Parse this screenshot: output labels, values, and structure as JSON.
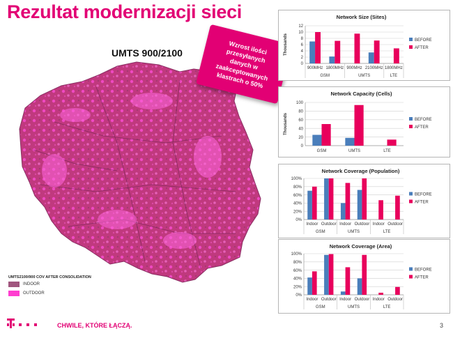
{
  "slide": {
    "title": "Rezultat modernizacji sieci",
    "map_title": "UMTS 900/2100",
    "callout_lines": [
      "Wzrost ilości",
      "przesyłanych",
      "danych w",
      "zaakceptowanych",
      "klastrach o 50%"
    ],
    "map_legend": {
      "title": "UMTS2100/900 COV AFTER CONSOLIDATION",
      "items": [
        {
          "label": "INDOOR",
          "color": "#a0567e"
        },
        {
          "label": "OUTDOOR",
          "color": "#ff3ed0"
        }
      ]
    },
    "slogan": "CHWILE, KTÓRE ŁĄCZĄ.",
    "logo_text": "T",
    "page_number": "3"
  },
  "colors": {
    "before": "#4a7ebb",
    "after": "#e8005c",
    "brand": "#e20074"
  },
  "chart_data": [
    {
      "type": "bar",
      "title": "Network Size (Sites)",
      "ylabel": "Thousands",
      "ylim": [
        0,
        12
      ],
      "yticks": [
        "0",
        "2",
        "4",
        "6",
        "8",
        "10",
        "12"
      ],
      "ytick_values": [
        0,
        2,
        4,
        6,
        8,
        10,
        12
      ],
      "categories": [
        "900MHz",
        "1800MHz",
        "900MHz",
        "2100MHz",
        "1800MHz"
      ],
      "groups": [
        {
          "label": "GSM",
          "span": 2
        },
        {
          "label": "UMTS",
          "span": 2
        },
        {
          "label": "LTE",
          "span": 1
        }
      ],
      "series": [
        {
          "name": "BEFORE",
          "values": [
            7,
            2.2,
            0,
            3.5,
            0
          ]
        },
        {
          "name": "AFTER",
          "values": [
            10,
            7.2,
            9.5,
            7.3,
            4.8
          ]
        }
      ],
      "legend": "right"
    },
    {
      "type": "bar",
      "title": "Network Capacity (Cells)",
      "ylabel": "Thousands",
      "ylim": [
        0,
        100
      ],
      "yticks": [
        "0",
        "20",
        "40",
        "60",
        "80",
        "100"
      ],
      "ytick_values": [
        0,
        20,
        40,
        60,
        80,
        100
      ],
      "categories": [
        "GSM",
        "UMTS",
        "LTE"
      ],
      "groups": [],
      "series": [
        {
          "name": "BEFORE",
          "values": [
            25,
            18,
            0
          ]
        },
        {
          "name": "AFTER",
          "values": [
            50,
            94,
            14
          ]
        }
      ],
      "legend": "right"
    },
    {
      "type": "bar",
      "title": "Network Coverage (Population)",
      "ylabel": "",
      "ylim": [
        0,
        100
      ],
      "yticks": [
        "0%",
        "20%",
        "40%",
        "60%",
        "80%",
        "100%"
      ],
      "ytick_values": [
        0,
        20,
        40,
        60,
        80,
        100
      ],
      "categories": [
        "Indoor",
        "Outdoor",
        "Indoor",
        "Outdoor",
        "Indoor",
        "Outdoor"
      ],
      "groups": [
        {
          "label": "GSM",
          "span": 2
        },
        {
          "label": "UMTS",
          "span": 2
        },
        {
          "label": "LTE",
          "span": 2
        }
      ],
      "series": [
        {
          "name": "BEFORE",
          "values": [
            70,
            100,
            40,
            72,
            0,
            0
          ]
        },
        {
          "name": "AFTER",
          "values": [
            80,
            100,
            89,
            100,
            47,
            58
          ]
        }
      ],
      "legend": "right"
    },
    {
      "type": "bar",
      "title": "Network Coverage (Area)",
      "ylabel": "",
      "ylim": [
        0,
        100
      ],
      "yticks": [
        "0%",
        "20%",
        "40%",
        "60%",
        "80%",
        "100%"
      ],
      "ytick_values": [
        0,
        20,
        40,
        60,
        80,
        100
      ],
      "categories": [
        "Indoor",
        "Outdoor",
        "Indoor",
        "Outdoor",
        "Indoor",
        "Outdoor"
      ],
      "groups": [
        {
          "label": "GSM",
          "span": 2
        },
        {
          "label": "UMTS",
          "span": 2
        },
        {
          "label": "LTE",
          "span": 2
        }
      ],
      "series": [
        {
          "name": "BEFORE",
          "values": [
            42,
            97,
            8,
            40,
            0,
            0
          ]
        },
        {
          "name": "AFTER",
          "values": [
            57,
            99,
            67,
            97,
            5,
            19
          ]
        }
      ],
      "legend": "right"
    }
  ]
}
